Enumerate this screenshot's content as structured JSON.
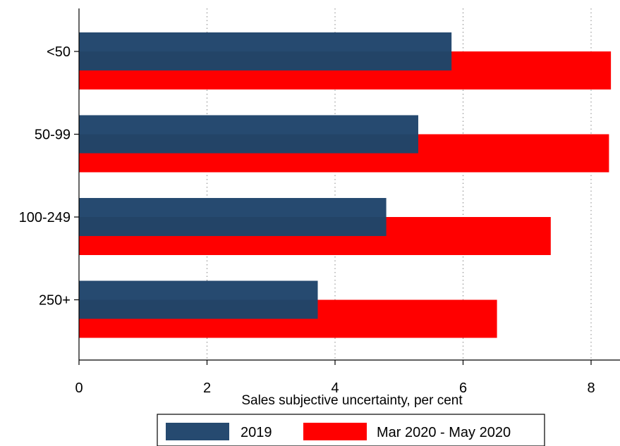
{
  "chart_data": {
    "type": "bar",
    "orientation": "horizontal",
    "categories": [
      "<50",
      "50-99",
      "100-249",
      "250+"
    ],
    "series": [
      {
        "name": "2019",
        "values": [
          5.82,
          5.3,
          4.8,
          3.73
        ],
        "color": "#264a70"
      },
      {
        "name": "Mar 2020 - May 2020",
        "values": [
          8.31,
          8.28,
          7.37,
          6.53
        ],
        "color": "#ff0000"
      }
    ],
    "xlabel": "Sales subjective uncertainty, per cent",
    "xlim": [
      0,
      8.5
    ],
    "xticks": [
      "0",
      "2",
      "4",
      "6",
      "8"
    ],
    "grid": true,
    "legend_position": "bottom"
  }
}
